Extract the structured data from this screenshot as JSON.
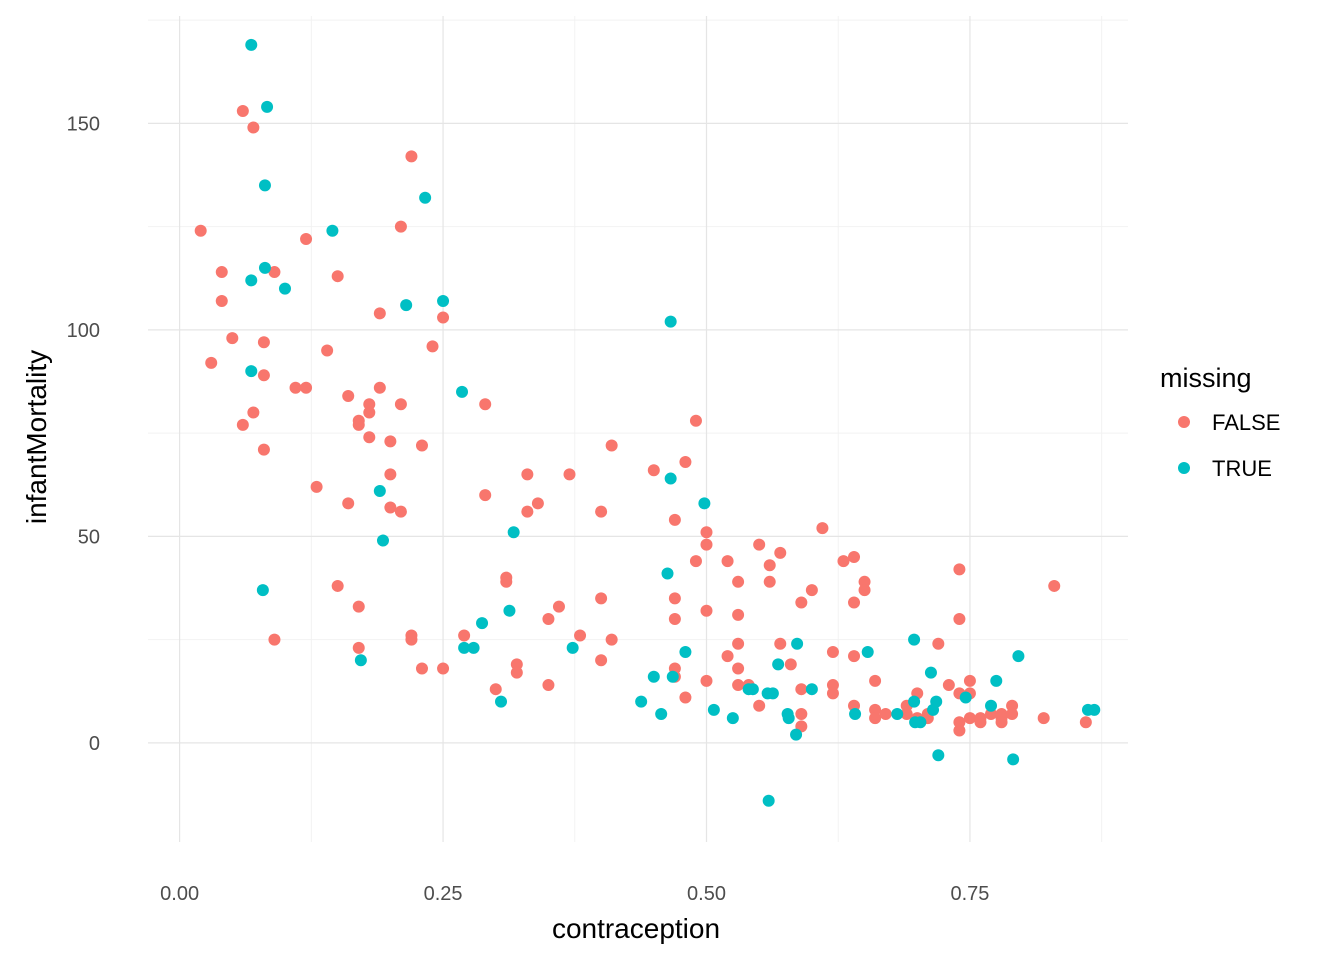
{
  "chart_data": {
    "type": "scatter",
    "xlabel": "contraception",
    "ylabel": "infantMortality",
    "xlim": [
      -0.03,
      0.9
    ],
    "ylim": [
      -24,
      176
    ],
    "x_ticks": [
      {
        "value": 0.0,
        "label": "0.00"
      },
      {
        "value": 0.25,
        "label": "0.25"
      },
      {
        "value": 0.5,
        "label": "0.50"
      },
      {
        "value": 0.75,
        "label": "0.75"
      }
    ],
    "y_ticks": [
      {
        "value": 0,
        "label": "0"
      },
      {
        "value": 50,
        "label": "50"
      },
      {
        "value": 100,
        "label": "100"
      },
      {
        "value": 150,
        "label": "150"
      }
    ],
    "grid": true,
    "legend": {
      "title": "missing",
      "placement": "right",
      "entries": [
        {
          "label": "FALSE",
          "color": "#F8766D"
        },
        {
          "label": "TRUE",
          "color": "#00BFC4"
        }
      ]
    },
    "series": [
      {
        "name": "FALSE",
        "color": "#F8766D",
        "points": [
          [
            0.02,
            124
          ],
          [
            0.03,
            92
          ],
          [
            0.04,
            114
          ],
          [
            0.04,
            107
          ],
          [
            0.05,
            98
          ],
          [
            0.06,
            153
          ],
          [
            0.06,
            77
          ],
          [
            0.07,
            149
          ],
          [
            0.07,
            80
          ],
          [
            0.08,
            97
          ],
          [
            0.08,
            89
          ],
          [
            0.08,
            71
          ],
          [
            0.09,
            114
          ],
          [
            0.09,
            25
          ],
          [
            0.11,
            86
          ],
          [
            0.12,
            122
          ],
          [
            0.12,
            86
          ],
          [
            0.13,
            62
          ],
          [
            0.14,
            95
          ],
          [
            0.15,
            113
          ],
          [
            0.15,
            38
          ],
          [
            0.16,
            84
          ],
          [
            0.16,
            58
          ],
          [
            0.17,
            78
          ],
          [
            0.17,
            77
          ],
          [
            0.17,
            33
          ],
          [
            0.17,
            23
          ],
          [
            0.18,
            82
          ],
          [
            0.18,
            80
          ],
          [
            0.18,
            74
          ],
          [
            0.19,
            104
          ],
          [
            0.19,
            86
          ],
          [
            0.2,
            73
          ],
          [
            0.2,
            65
          ],
          [
            0.2,
            57
          ],
          [
            0.21,
            125
          ],
          [
            0.21,
            82
          ],
          [
            0.21,
            56
          ],
          [
            0.22,
            142
          ],
          [
            0.22,
            26
          ],
          [
            0.22,
            25
          ],
          [
            0.23,
            72
          ],
          [
            0.23,
            18
          ],
          [
            0.24,
            96
          ],
          [
            0.25,
            103
          ],
          [
            0.25,
            18
          ],
          [
            0.27,
            26
          ],
          [
            0.29,
            82
          ],
          [
            0.29,
            60
          ],
          [
            0.3,
            13
          ],
          [
            0.31,
            40
          ],
          [
            0.31,
            39
          ],
          [
            0.32,
            19
          ],
          [
            0.32,
            17
          ],
          [
            0.33,
            65
          ],
          [
            0.33,
            56
          ],
          [
            0.34,
            58
          ],
          [
            0.35,
            30
          ],
          [
            0.35,
            14
          ],
          [
            0.36,
            33
          ],
          [
            0.37,
            65
          ],
          [
            0.38,
            26
          ],
          [
            0.4,
            56
          ],
          [
            0.4,
            35
          ],
          [
            0.4,
            20
          ],
          [
            0.41,
            72
          ],
          [
            0.41,
            25
          ],
          [
            0.45,
            66
          ],
          [
            0.47,
            54
          ],
          [
            0.47,
            35
          ],
          [
            0.47,
            30
          ],
          [
            0.47,
            18
          ],
          [
            0.47,
            16
          ],
          [
            0.48,
            68
          ],
          [
            0.48,
            11
          ],
          [
            0.49,
            78
          ],
          [
            0.49,
            44
          ],
          [
            0.5,
            51
          ],
          [
            0.5,
            48
          ],
          [
            0.5,
            32
          ],
          [
            0.5,
            15
          ],
          [
            0.52,
            44
          ],
          [
            0.52,
            21
          ],
          [
            0.53,
            39
          ],
          [
            0.53,
            31
          ],
          [
            0.53,
            24
          ],
          [
            0.53,
            18
          ],
          [
            0.53,
            14
          ],
          [
            0.54,
            14
          ],
          [
            0.55,
            48
          ],
          [
            0.55,
            9
          ],
          [
            0.56,
            43
          ],
          [
            0.56,
            39
          ],
          [
            0.57,
            46
          ],
          [
            0.57,
            24
          ],
          [
            0.58,
            19
          ],
          [
            0.59,
            34
          ],
          [
            0.59,
            13
          ],
          [
            0.59,
            7
          ],
          [
            0.59,
            4
          ],
          [
            0.6,
            37
          ],
          [
            0.61,
            52
          ],
          [
            0.62,
            22
          ],
          [
            0.62,
            14
          ],
          [
            0.62,
            12
          ],
          [
            0.63,
            44
          ],
          [
            0.64,
            45
          ],
          [
            0.64,
            34
          ],
          [
            0.64,
            21
          ],
          [
            0.64,
            9
          ],
          [
            0.65,
            39
          ],
          [
            0.65,
            37
          ],
          [
            0.66,
            15
          ],
          [
            0.66,
            8
          ],
          [
            0.66,
            6
          ],
          [
            0.67,
            7
          ],
          [
            0.69,
            9
          ],
          [
            0.69,
            7
          ],
          [
            0.7,
            12
          ],
          [
            0.7,
            6
          ],
          [
            0.71,
            7
          ],
          [
            0.71,
            6
          ],
          [
            0.72,
            24
          ],
          [
            0.73,
            14
          ],
          [
            0.74,
            42
          ],
          [
            0.74,
            30
          ],
          [
            0.74,
            12
          ],
          [
            0.74,
            5
          ],
          [
            0.74,
            3
          ],
          [
            0.75,
            15
          ],
          [
            0.75,
            12
          ],
          [
            0.75,
            6
          ],
          [
            0.76,
            6
          ],
          [
            0.76,
            5
          ],
          [
            0.77,
            7
          ],
          [
            0.78,
            7
          ],
          [
            0.78,
            6
          ],
          [
            0.78,
            5
          ],
          [
            0.79,
            9
          ],
          [
            0.79,
            7
          ],
          [
            0.82,
            6
          ],
          [
            0.83,
            38
          ],
          [
            0.86,
            5
          ]
        ]
      },
      {
        "name": "TRUE",
        "color": "#00BFC4",
        "points": [
          [
            0.068,
            169
          ],
          [
            0.083,
            154
          ],
          [
            0.081,
            135
          ],
          [
            0.068,
            112
          ],
          [
            0.081,
            115
          ],
          [
            0.1,
            110
          ],
          [
            0.068,
            90
          ],
          [
            0.079,
            37
          ],
          [
            0.145,
            124
          ],
          [
            0.172,
            20
          ],
          [
            0.19,
            61
          ],
          [
            0.193,
            49
          ],
          [
            0.215,
            106
          ],
          [
            0.233,
            132
          ],
          [
            0.25,
            107
          ],
          [
            0.268,
            85
          ],
          [
            0.27,
            23
          ],
          [
            0.279,
            23
          ],
          [
            0.287,
            29
          ],
          [
            0.305,
            10
          ],
          [
            0.313,
            32
          ],
          [
            0.317,
            51
          ],
          [
            0.373,
            23
          ],
          [
            0.438,
            10
          ],
          [
            0.45,
            16
          ],
          [
            0.457,
            7
          ],
          [
            0.463,
            41
          ],
          [
            0.466,
            102
          ],
          [
            0.466,
            64
          ],
          [
            0.468,
            16
          ],
          [
            0.48,
            22
          ],
          [
            0.498,
            58
          ],
          [
            0.507,
            8
          ],
          [
            0.525,
            6
          ],
          [
            0.54,
            13
          ],
          [
            0.544,
            13
          ],
          [
            0.558,
            12
          ],
          [
            0.559,
            -14
          ],
          [
            0.563,
            12
          ],
          [
            0.568,
            19
          ],
          [
            0.577,
            7
          ],
          [
            0.578,
            6
          ],
          [
            0.585,
            2
          ],
          [
            0.586,
            24
          ],
          [
            0.6,
            13
          ],
          [
            0.641,
            7
          ],
          [
            0.653,
            22
          ],
          [
            0.681,
            7
          ],
          [
            0.697,
            25
          ],
          [
            0.697,
            10
          ],
          [
            0.698,
            5
          ],
          [
            0.703,
            5
          ],
          [
            0.713,
            17
          ],
          [
            0.715,
            8
          ],
          [
            0.718,
            10
          ],
          [
            0.72,
            -3
          ],
          [
            0.746,
            11
          ],
          [
            0.77,
            9
          ],
          [
            0.775,
            15
          ],
          [
            0.791,
            -4
          ],
          [
            0.796,
            21
          ],
          [
            0.862,
            8
          ],
          [
            0.868,
            8
          ]
        ]
      }
    ]
  }
}
